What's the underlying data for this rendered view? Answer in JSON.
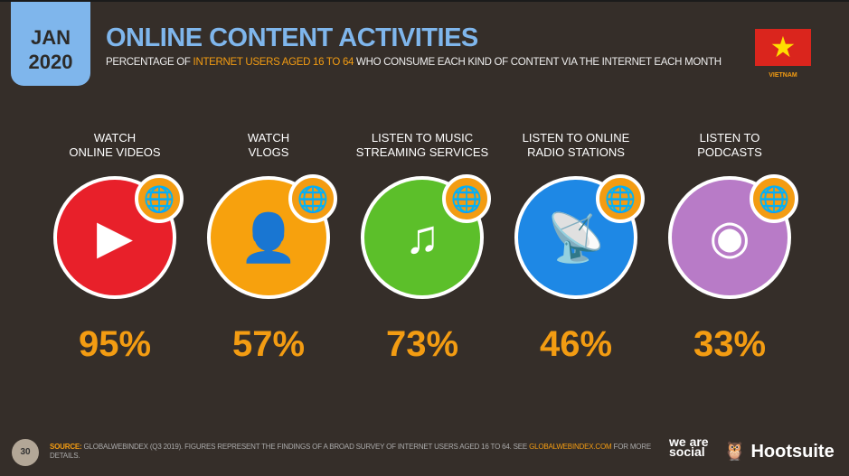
{
  "header": {
    "month": "JAN",
    "year": "2020",
    "title": "ONLINE CONTENT ACTIVITIES",
    "subtitle_pre": "PERCENTAGE OF ",
    "subtitle_hl": "INTERNET USERS AGED 16 TO 64",
    "subtitle_post": " WHO CONSUME EACH KIND OF CONTENT VIA THE INTERNET EACH MONTH",
    "country": "VIETNAM"
  },
  "activities": [
    {
      "l1": "WATCH",
      "l2": "ONLINE VIDEOS",
      "value": "95%",
      "color": "#e8202a",
      "icon": "video-play-icon"
    },
    {
      "l1": "WATCH",
      "l2": "VLOGS",
      "value": "57%",
      "color": "#f7a10d",
      "icon": "vlog-icon"
    },
    {
      "l1": "LISTEN TO MUSIC",
      "l2": "STREAMING SERVICES",
      "value": "73%",
      "color": "#5cbf2a",
      "icon": "music-cloud-icon"
    },
    {
      "l1": "LISTEN TO ONLINE",
      "l2": "RADIO STATIONS",
      "value": "46%",
      "color": "#1e88e5",
      "icon": "radio-antenna-icon"
    },
    {
      "l1": "LISTEN TO",
      "l2": "PODCASTS",
      "value": "33%",
      "color": "#b87bc7",
      "icon": "podcast-icon"
    }
  ],
  "footer": {
    "page": "30",
    "source_label": "SOURCE:",
    "source_text": " GLOBALWEBINDEX (Q3 2019). FIGURES REPRESENT THE FINDINGS OF A BROAD SURVEY OF INTERNET USERS AGED 16 TO 64. SEE ",
    "link": "GLOBALWEBINDEX.COM",
    "tail": " FOR MORE DETAILS.",
    "logo1": "we are social",
    "logo2": "Hootsuite"
  }
}
